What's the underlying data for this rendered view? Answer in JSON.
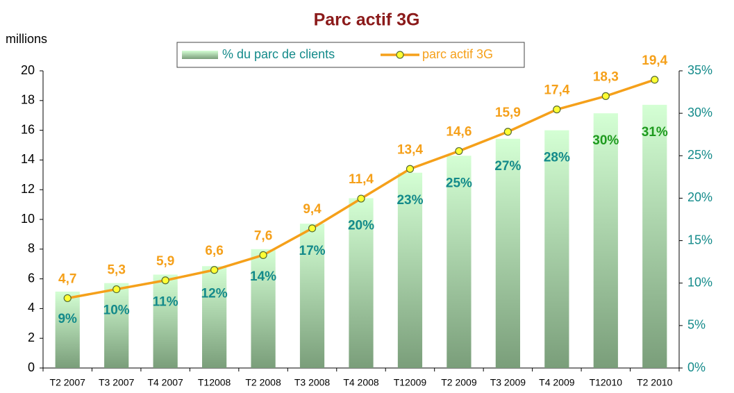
{
  "chart_data": {
    "type": "bar-line",
    "title": "Parc actif 3G",
    "y_label": "millions",
    "categories": [
      "T2 2007",
      "T3 2007",
      "T4 2007",
      "T12008",
      "T2 2008",
      "T3 2008",
      "T4 2008",
      "T12009",
      "T2 2009",
      "T3 2009",
      "T4 2009",
      "T12010",
      "T2 2010"
    ],
    "series": [
      {
        "name": "% du parc de clients",
        "type": "bar",
        "axis": "y2",
        "color": "#8fb88f",
        "values": [
          9,
          10,
          11,
          12,
          14,
          17,
          20,
          23,
          25,
          27,
          28,
          30,
          31
        ],
        "value_labels": [
          "9%",
          "10%",
          "11%",
          "12%",
          "14%",
          "17%",
          "20%",
          "23%",
          "25%",
          "27%",
          "28%",
          "30%",
          "31%"
        ],
        "value_label_colors": [
          "#138a8a",
          "#138a8a",
          "#138a8a",
          "#138a8a",
          "#138a8a",
          "#138a8a",
          "#138a8a",
          "#138a8a",
          "#138a8a",
          "#138a8a",
          "#138a8a",
          "#1e9a1e",
          "#1e9a1e"
        ]
      },
      {
        "name": "parc actif 3G",
        "type": "line",
        "axis": "y",
        "color": "#f5a01a",
        "marker_color": "#ffff33",
        "values": [
          4.7,
          5.3,
          5.9,
          6.6,
          7.6,
          9.4,
          11.4,
          13.4,
          14.6,
          15.9,
          17.4,
          18.3,
          19.4
        ],
        "value_labels": [
          "4,7",
          "5,3",
          "5,9",
          "6,6",
          "7,6",
          "9,4",
          "11,4",
          "13,4",
          "14,6",
          "15,9",
          "17,4",
          "18,3",
          "19,4"
        ]
      }
    ],
    "ylim": [
      0,
      20
    ],
    "yticks": [
      0,
      2,
      4,
      6,
      8,
      10,
      12,
      14,
      16,
      18,
      20
    ],
    "y2lim": [
      0,
      35
    ],
    "y2ticks": [
      {
        "value": 0,
        "label": "0%"
      },
      {
        "value": 5,
        "label": "5%"
      },
      {
        "value": 10,
        "label": "10%"
      },
      {
        "value": 15,
        "label": "15%"
      },
      {
        "value": 20,
        "label": "20%"
      },
      {
        "value": 25,
        "label": "25%"
      },
      {
        "value": 30,
        "label": "30%"
      },
      {
        "value": 35,
        "label": "35%"
      }
    ],
    "grid": false
  }
}
